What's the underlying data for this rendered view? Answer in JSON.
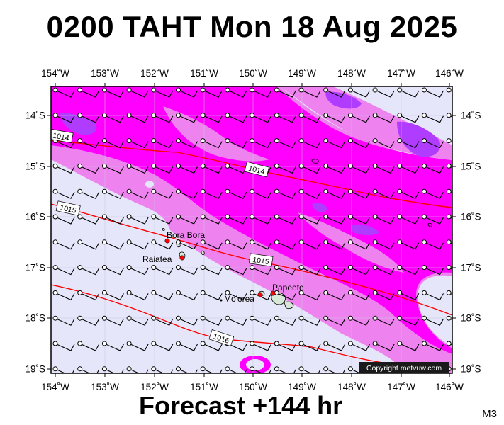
{
  "header": {
    "title": "0200 TAHT Mon 18 Aug 2025"
  },
  "footer": {
    "forecast": "Forecast +144 hr",
    "model": "M3"
  },
  "axes": {
    "lon_labels": [
      "154˚W",
      "153˚W",
      "152˚W",
      "151˚W",
      "150˚W",
      "149˚W",
      "148˚W",
      "147˚W",
      "146˚W"
    ],
    "lat_labels": [
      "14˚S",
      "15˚S",
      "16˚S",
      "17˚S",
      "18˚S",
      "19˚S"
    ]
  },
  "isobars": [
    "1014",
    "1014",
    "1015",
    "1015",
    "1016"
  ],
  "places": [
    "Bora Bora",
    "Raiatea",
    "Mo'orea",
    "Papeete"
  ],
  "copyright": "Copyright metvuw.com",
  "colors": {
    "background": "#e6e6fa",
    "rain_light": "#ee82ee",
    "rain_moderate": "#ff00ff",
    "rain_heavy": "#b03cff",
    "isobar": "#ff0000",
    "land": "#d8e8d8"
  }
}
